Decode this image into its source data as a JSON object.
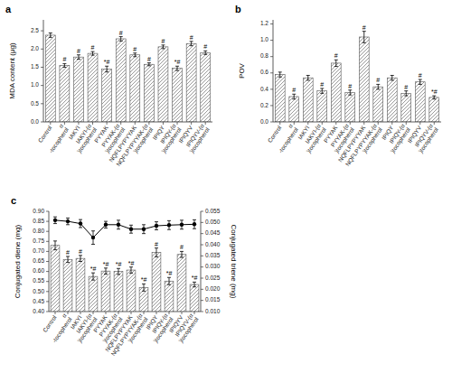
{
  "chart_data": [
    {
      "type": "bar",
      "title": "a",
      "categories": [
        "Control",
        "α\n-tocopherol",
        "IAKYI",
        "IAKYI-(α\n)tocopherol",
        "PYYAK",
        "PYYAK-(α\n)tocopherol",
        "NQFLPYPYYAK",
        "NQFLPYPYYAK-(α\n)tocopherol",
        "IPIQY",
        "IPIQY-(α\n)tocopherol",
        "IPIQYV",
        "IPIQYV-(α\n)tocopherol"
      ],
      "y_label": "MDA content (μg)",
      "ylim": [
        0,
        2.8
      ],
      "yticks": [
        {
          "value": 0,
          "label": "0.0"
        },
        0.5,
        {
          "value": 1,
          "label": "1.0"
        },
        1.5,
        {
          "value": 2,
          "label": "2.0"
        },
        2.5
      ],
      "color": "#555555",
      "values": [
        2.38,
        1.55,
        1.78,
        1.88,
        1.45,
        2.28,
        1.84,
        1.58,
        2.06,
        1.47,
        2.15,
        1.9
      ],
      "errors": [
        0.06,
        0.05,
        0.06,
        0.05,
        0.08,
        0.06,
        0.05,
        0.04,
        0.05,
        0.06,
        0.06,
        0.05
      ],
      "annotations": [
        null,
        "#",
        "#",
        "#",
        "*#",
        "#",
        "#",
        "#",
        "#",
        "*#",
        "#",
        "#"
      ]
    },
    {
      "type": "bar",
      "title": "b",
      "categories": [
        "Control",
        "α\n-tocopherol",
        "IAKYI",
        "IAKYI-(α\n)tocopherol",
        "PYYAK",
        "PYYAK-(α\n)tocopherol",
        "NQFLPYPYYAK",
        "NQFLPYPYYAK-(α\n)tocopherol",
        "IPIQY",
        "IPIQY-(α\n)tocopherol",
        "IPIQYV",
        "IPIQYV-(α\n)tocopherol"
      ],
      "y_label": "POV",
      "ylim": [
        0,
        1.25
      ],
      "yticks": [
        {
          "value": 0,
          "label": "0.0"
        },
        0.2,
        0.4,
        0.6,
        0.8,
        {
          "value": 1,
          "label": "1.0"
        },
        1.2
      ],
      "color": "#555555",
      "values": [
        0.58,
        0.31,
        0.54,
        0.38,
        0.72,
        0.36,
        1.04,
        0.43,
        0.54,
        0.35,
        0.49,
        0.3
      ],
      "errors": [
        0.03,
        0.03,
        0.03,
        0.03,
        0.04,
        0.03,
        0.07,
        0.03,
        0.03,
        0.03,
        0.03,
        0.02
      ],
      "annotations": [
        null,
        "#",
        null,
        "#",
        "#",
        "#",
        "#",
        "#",
        null,
        "#",
        "#",
        "*#"
      ]
    },
    {
      "type": "bar",
      "title": "c",
      "categories": [
        "Control",
        "α\n-tocopherol",
        "IAKYI",
        "IAKYI-(α\n)tocopherol",
        "PYYAK",
        "PYYAK-(α\n)tocopherol",
        "NQFLPYPYYAK",
        "NQFLPYPYYAK-(α\n)tocopherol",
        "IPIQY",
        "IPIQY-(α\n)tocopherol",
        "IPIQYV",
        "IPIQYV-(α\n)tocopherol"
      ],
      "y_label": "Conjugated diene (mg)",
      "y2_label": "Conjugated triene (mg)",
      "ylim": [
        0.4,
        0.9
      ],
      "yticks": [
        {
          "value": 0.4,
          "label": "0.40"
        },
        0.45,
        {
          "value": 0.5,
          "label": "0.50"
        },
        0.55,
        {
          "value": 0.6,
          "label": "0.60"
        },
        0.65,
        {
          "value": 0.7,
          "label": "0.70"
        },
        0.75,
        {
          "value": 0.8,
          "label": "0.80"
        },
        0.85,
        {
          "value": 0.9,
          "label": "0.90"
        }
      ],
      "y2lim": [
        0.01,
        0.055
      ],
      "y2ticks": [
        {
          "value": 0.01,
          "label": "0.010"
        },
        0.015,
        {
          "value": 0.02,
          "label": "0.020"
        },
        0.025,
        {
          "value": 0.03,
          "label": "0.030"
        },
        0.035,
        {
          "value": 0.04,
          "label": "0.040"
        },
        0.045,
        {
          "value": 0.05,
          "label": "0.050"
        },
        0.055
      ],
      "series": [
        {
          "type": "bar",
          "color": "#555555",
          "values": [
            0.73,
            0.66,
            0.665,
            0.575,
            0.602,
            0.6,
            0.607,
            0.52,
            0.695,
            0.552,
            0.685,
            0.535
          ],
          "errors": [
            0.022,
            0.015,
            0.015,
            0.018,
            0.015,
            0.015,
            0.015,
            0.018,
            0.022,
            0.018,
            0.015,
            0.012
          ],
          "annotations": [
            null,
            "#",
            "#",
            "*#",
            "*#",
            "*#",
            "*#",
            "*#",
            "#",
            "*#",
            "#",
            "*#"
          ]
        },
        {
          "type": "line",
          "axis": "y2",
          "color": "black",
          "marker": "circle",
          "values": [
            0.051,
            0.0505,
            0.0495,
            0.0432,
            0.049,
            0.049,
            0.047,
            0.047,
            0.0485,
            0.0488,
            0.049,
            0.0492
          ],
          "errors": [
            0.0015,
            0.0015,
            0.0018,
            0.003,
            0.0015,
            0.002,
            0.0018,
            0.002,
            0.0018,
            0.002,
            0.002,
            0.002
          ]
        }
      ]
    }
  ]
}
